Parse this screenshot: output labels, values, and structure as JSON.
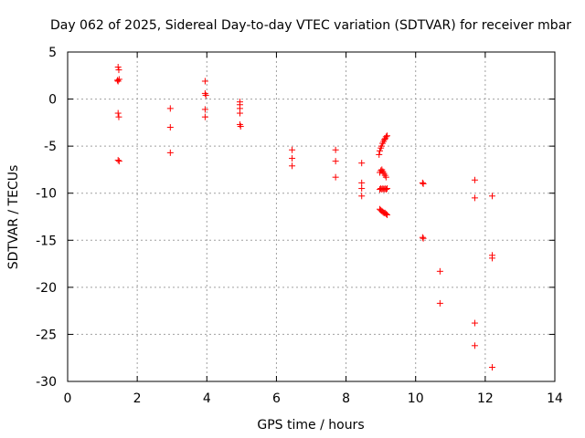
{
  "chart_data": {
    "type": "scatter",
    "title": "Day 062 of 2025, Sidereal Day-to-day VTEC variation (SDTVAR) for receiver mbar",
    "xlabel": "GPS time / hours",
    "ylabel": "SDTVAR / TECUs",
    "xlim": [
      0,
      14
    ],
    "ylim": [
      -30,
      5
    ],
    "xticks": [
      "0",
      "2",
      "4",
      "6",
      "8",
      "10",
      "12",
      "14"
    ],
    "yticks": [
      "5",
      "0",
      "-5",
      "-10",
      "-15",
      "-20",
      "-25",
      "-30"
    ],
    "grid": true,
    "marker": "+",
    "color": "#ff0000",
    "points": [
      [
        1.45,
        3.4
      ],
      [
        1.47,
        3.1
      ],
      [
        1.43,
        2.0
      ],
      [
        1.48,
        2.1
      ],
      [
        1.45,
        1.9
      ],
      [
        1.45,
        -1.5
      ],
      [
        1.47,
        -1.9
      ],
      [
        1.45,
        -6.5
      ],
      [
        1.48,
        -6.6
      ],
      [
        2.95,
        -1.0
      ],
      [
        2.95,
        -3.0
      ],
      [
        2.95,
        -5.7
      ],
      [
        3.95,
        1.9
      ],
      [
        3.95,
        0.6
      ],
      [
        3.97,
        0.4
      ],
      [
        3.95,
        -1.1
      ],
      [
        3.95,
        -1.9
      ],
      [
        4.95,
        -0.3
      ],
      [
        4.95,
        -0.6
      ],
      [
        4.95,
        -1.0
      ],
      [
        4.95,
        -1.5
      ],
      [
        4.95,
        -2.7
      ],
      [
        4.97,
        -2.9
      ],
      [
        6.45,
        -5.4
      ],
      [
        6.45,
        -6.3
      ],
      [
        6.45,
        -7.1
      ],
      [
        7.7,
        -5.4
      ],
      [
        7.7,
        -6.6
      ],
      [
        7.7,
        -8.3
      ],
      [
        8.45,
        -6.8
      ],
      [
        8.45,
        -8.9
      ],
      [
        8.45,
        -9.5
      ],
      [
        8.45,
        -10.3
      ],
      [
        8.95,
        -5.9
      ],
      [
        8.97,
        -5.5
      ],
      [
        9.0,
        -5.2
      ],
      [
        9.02,
        -5.0
      ],
      [
        9.05,
        -4.7
      ],
      [
        9.08,
        -4.5
      ],
      [
        9.1,
        -4.3
      ],
      [
        9.13,
        -4.2
      ],
      [
        9.15,
        -4.0
      ],
      [
        9.18,
        -3.9
      ],
      [
        8.97,
        -7.8
      ],
      [
        9.0,
        -7.6
      ],
      [
        9.03,
        -7.5
      ],
      [
        9.06,
        -7.7
      ],
      [
        9.09,
        -7.9
      ],
      [
        9.12,
        -8.1
      ],
      [
        9.15,
        -8.3
      ],
      [
        8.97,
        -9.6
      ],
      [
        9.0,
        -9.5
      ],
      [
        9.03,
        -9.6
      ],
      [
        9.06,
        -9.5
      ],
      [
        9.09,
        -9.6
      ],
      [
        9.12,
        -9.5
      ],
      [
        9.15,
        -9.6
      ],
      [
        9.18,
        -9.5
      ],
      [
        8.97,
        -11.7
      ],
      [
        9.0,
        -11.8
      ],
      [
        9.03,
        -11.9
      ],
      [
        9.06,
        -12.0
      ],
      [
        9.09,
        -12.1
      ],
      [
        9.12,
        -12.1
      ],
      [
        9.15,
        -12.2
      ],
      [
        9.18,
        -12.3
      ],
      [
        10.2,
        -8.9
      ],
      [
        10.22,
        -9.0
      ],
      [
        10.2,
        -14.7
      ],
      [
        10.22,
        -14.8
      ],
      [
        10.7,
        -18.3
      ],
      [
        10.7,
        -21.7
      ],
      [
        11.7,
        -8.6
      ],
      [
        11.7,
        -10.5
      ],
      [
        11.7,
        -23.8
      ],
      [
        11.7,
        -26.2
      ],
      [
        12.2,
        -10.3
      ],
      [
        12.2,
        -16.6
      ],
      [
        12.2,
        -16.9
      ],
      [
        12.2,
        -28.5
      ]
    ]
  }
}
